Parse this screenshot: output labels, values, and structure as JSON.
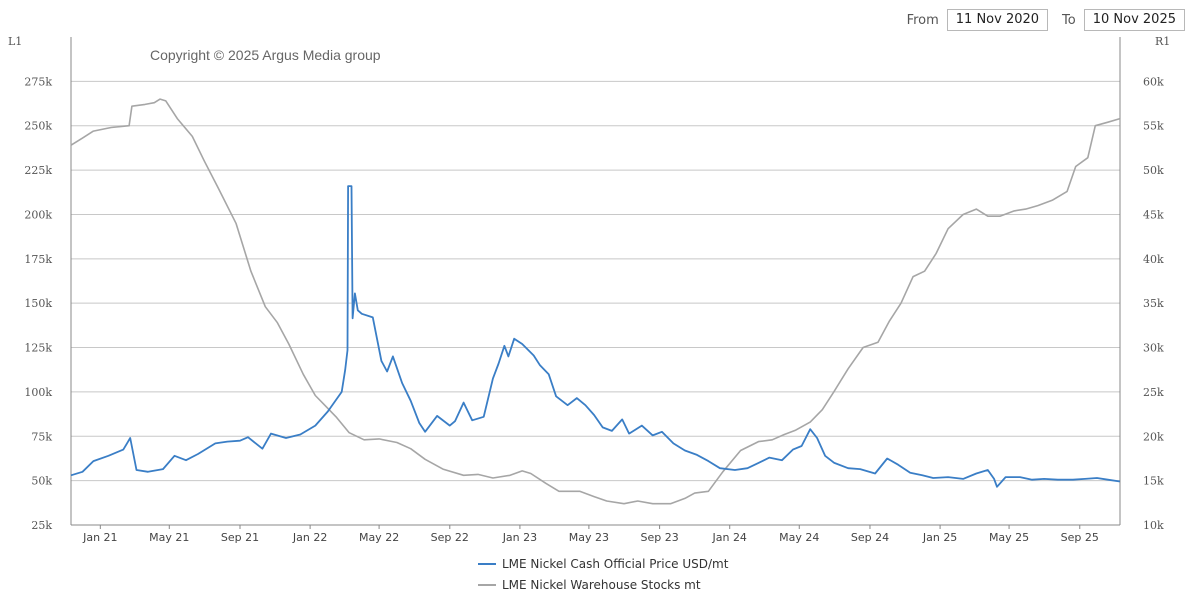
{
  "range": {
    "from_label": "From",
    "from_value": "11 Nov 2020",
    "to_label": "To",
    "to_value": "10 Nov 2025"
  },
  "copyright": "Copyright © 2025 Argus Media group",
  "colors": {
    "price": "#3a7ec6",
    "stocks": "#a6a6a6",
    "grid": "#c8c8c8",
    "axis": "#888888"
  },
  "chart_data": {
    "type": "line",
    "title": "",
    "grid": true,
    "legend_placement": "bottom-center",
    "left_axis": {
      "label": "L1",
      "ylim": [
        25000,
        300000
      ],
      "ticks": [
        25000,
        50000,
        75000,
        100000,
        125000,
        150000,
        175000,
        200000,
        225000,
        250000,
        275000
      ],
      "tick_labels": [
        "25k",
        "50k",
        "75k",
        "100k",
        "125k",
        "150k",
        "175k",
        "200k",
        "225k",
        "250k",
        "275k"
      ]
    },
    "right_axis": {
      "label": "R1",
      "ylim": [
        10000,
        65000
      ],
      "ticks": [
        10000,
        15000,
        20000,
        25000,
        30000,
        35000,
        40000,
        45000,
        50000,
        55000,
        60000
      ],
      "tick_labels": [
        "10k",
        "15k",
        "20k",
        "25k",
        "30k",
        "35k",
        "40k",
        "45k",
        "50k",
        "55k",
        "60k"
      ]
    },
    "x_axis": {
      "xlim": [
        "2020-11-11",
        "2025-11-10"
      ],
      "ticks": [
        "2021-01-01",
        "2021-05-01",
        "2021-09-01",
        "2022-01-01",
        "2022-05-01",
        "2022-09-01",
        "2023-01-01",
        "2023-05-01",
        "2023-09-01",
        "2024-01-01",
        "2024-05-01",
        "2024-09-01",
        "2025-01-01",
        "2025-05-01",
        "2025-09-01"
      ],
      "tick_labels": [
        "Jan 21",
        "May 21",
        "Sep 21",
        "Jan 22",
        "May 22",
        "Sep 22",
        "Jan 23",
        "May 23",
        "Sep 23",
        "Jan 24",
        "May 24",
        "Sep 24",
        "Jan 25",
        "May 25",
        "Sep 25"
      ]
    },
    "series": [
      {
        "name": "LME Nickel Cash Official Price USD/mt",
        "axis": "right",
        "points": [
          [
            "2020-11-11",
            15600
          ],
          [
            "2020-12-01",
            16000
          ],
          [
            "2020-12-20",
            17200
          ],
          [
            "2021-01-15",
            17800
          ],
          [
            "2021-02-10",
            18500
          ],
          [
            "2021-02-22",
            19800
          ],
          [
            "2021-03-05",
            16200
          ],
          [
            "2021-03-25",
            16000
          ],
          [
            "2021-04-20",
            16300
          ],
          [
            "2021-05-10",
            17800
          ],
          [
            "2021-05-30",
            17300
          ],
          [
            "2021-06-20",
            18000
          ],
          [
            "2021-07-20",
            19200
          ],
          [
            "2021-08-10",
            19400
          ],
          [
            "2021-09-01",
            19500
          ],
          [
            "2021-09-15",
            19900
          ],
          [
            "2021-10-10",
            18600
          ],
          [
            "2021-10-25",
            20300
          ],
          [
            "2021-11-20",
            19800
          ],
          [
            "2021-12-15",
            20200
          ],
          [
            "2022-01-10",
            21200
          ],
          [
            "2022-02-01",
            22800
          ],
          [
            "2022-02-25",
            25000
          ],
          [
            "2022-03-03",
            27500
          ],
          [
            "2022-03-07",
            29700
          ],
          [
            "2022-03-08",
            48200
          ],
          [
            "2022-03-14",
            48200
          ],
          [
            "2022-03-16",
            33300
          ],
          [
            "2022-03-20",
            36100
          ],
          [
            "2022-03-25",
            34200
          ],
          [
            "2022-04-01",
            33800
          ],
          [
            "2022-04-20",
            33400
          ],
          [
            "2022-05-05",
            28500
          ],
          [
            "2022-05-15",
            27300
          ],
          [
            "2022-05-25",
            29000
          ],
          [
            "2022-06-10",
            26000
          ],
          [
            "2022-06-25",
            24000
          ],
          [
            "2022-07-10",
            21500
          ],
          [
            "2022-07-20",
            20500
          ],
          [
            "2022-08-10",
            22300
          ],
          [
            "2022-09-01",
            21200
          ],
          [
            "2022-09-10",
            21700
          ],
          [
            "2022-09-25",
            23800
          ],
          [
            "2022-10-10",
            21800
          ],
          [
            "2022-10-30",
            22200
          ],
          [
            "2022-11-15",
            26500
          ],
          [
            "2022-11-25",
            28200
          ],
          [
            "2022-12-05",
            30200
          ],
          [
            "2022-12-12",
            29000
          ],
          [
            "2022-12-22",
            31000
          ],
          [
            "2023-01-05",
            30400
          ],
          [
            "2023-01-25",
            29100
          ],
          [
            "2023-02-05",
            28000
          ],
          [
            "2023-02-20",
            27000
          ],
          [
            "2023-03-05",
            24500
          ],
          [
            "2023-03-25",
            23500
          ],
          [
            "2023-04-10",
            24300
          ],
          [
            "2023-04-25",
            23500
          ],
          [
            "2023-05-10",
            22400
          ],
          [
            "2023-05-25",
            21000
          ],
          [
            "2023-06-10",
            20600
          ],
          [
            "2023-06-28",
            21900
          ],
          [
            "2023-07-10",
            20300
          ],
          [
            "2023-08-01",
            21200
          ],
          [
            "2023-08-20",
            20100
          ],
          [
            "2023-09-05",
            20500
          ],
          [
            "2023-09-25",
            19200
          ],
          [
            "2023-10-15",
            18400
          ],
          [
            "2023-11-05",
            17900
          ],
          [
            "2023-11-25",
            17200
          ],
          [
            "2023-12-15",
            16400
          ],
          [
            "2024-01-10",
            16200
          ],
          [
            "2024-02-01",
            16400
          ],
          [
            "2024-02-20",
            17000
          ],
          [
            "2024-03-10",
            17600
          ],
          [
            "2024-04-01",
            17300
          ],
          [
            "2024-04-20",
            18500
          ],
          [
            "2024-05-05",
            18900
          ],
          [
            "2024-05-20",
            20800
          ],
          [
            "2024-06-01",
            19800
          ],
          [
            "2024-06-15",
            17800
          ],
          [
            "2024-07-01",
            17000
          ],
          [
            "2024-07-25",
            16400
          ],
          [
            "2024-08-15",
            16300
          ],
          [
            "2024-09-10",
            15800
          ],
          [
            "2024-10-01",
            17500
          ],
          [
            "2024-10-20",
            16800
          ],
          [
            "2024-11-10",
            15900
          ],
          [
            "2024-12-01",
            15600
          ],
          [
            "2024-12-20",
            15300
          ],
          [
            "2025-01-15",
            15400
          ],
          [
            "2025-02-10",
            15200
          ],
          [
            "2025-03-05",
            15800
          ],
          [
            "2025-03-25",
            16200
          ],
          [
            "2025-04-05",
            15200
          ],
          [
            "2025-04-10",
            14300
          ],
          [
            "2025-04-25",
            15400
          ],
          [
            "2025-05-20",
            15400
          ],
          [
            "2025-06-10",
            15100
          ],
          [
            "2025-07-01",
            15200
          ],
          [
            "2025-07-25",
            15100
          ],
          [
            "2025-08-20",
            15100
          ],
          [
            "2025-09-10",
            15200
          ],
          [
            "2025-10-01",
            15300
          ],
          [
            "2025-10-20",
            15100
          ],
          [
            "2025-11-10",
            14900
          ]
        ]
      },
      {
        "name": "LME Nickel Warehouse Stocks mt",
        "axis": "left",
        "points": [
          [
            "2020-11-11",
            239000
          ],
          [
            "2020-12-01",
            243000
          ],
          [
            "2020-12-20",
            247000
          ],
          [
            "2021-01-20",
            249000
          ],
          [
            "2021-02-20",
            250000
          ],
          [
            "2021-02-25",
            261000
          ],
          [
            "2021-03-20",
            262000
          ],
          [
            "2021-04-05",
            263000
          ],
          [
            "2021-04-15",
            265000
          ],
          [
            "2021-04-25",
            264000
          ],
          [
            "2021-05-15",
            254000
          ],
          [
            "2021-06-10",
            244000
          ],
          [
            "2021-07-01",
            230000
          ],
          [
            "2021-07-25",
            215000
          ],
          [
            "2021-08-25",
            195000
          ],
          [
            "2021-09-20",
            168000
          ],
          [
            "2021-10-15",
            148000
          ],
          [
            "2021-11-05",
            139000
          ],
          [
            "2021-11-25",
            127000
          ],
          [
            "2021-12-20",
            110000
          ],
          [
            "2022-01-10",
            98000
          ],
          [
            "2022-01-25",
            93000
          ],
          [
            "2022-02-15",
            86000
          ],
          [
            "2022-03-10",
            77000
          ],
          [
            "2022-04-05",
            73000
          ],
          [
            "2022-05-01",
            73500
          ],
          [
            "2022-06-01",
            71500
          ],
          [
            "2022-06-25",
            68000
          ],
          [
            "2022-07-20",
            62000
          ],
          [
            "2022-08-20",
            56500
          ],
          [
            "2022-09-25",
            53000
          ],
          [
            "2022-10-20",
            53500
          ],
          [
            "2022-11-15",
            51500
          ],
          [
            "2022-12-15",
            53000
          ],
          [
            "2023-01-05",
            55500
          ],
          [
            "2023-01-20",
            54000
          ],
          [
            "2023-02-15",
            48500
          ],
          [
            "2023-03-10",
            44000
          ],
          [
            "2023-04-15",
            44000
          ],
          [
            "2023-05-10",
            41000
          ],
          [
            "2023-06-01",
            38500
          ],
          [
            "2023-07-01",
            37000
          ],
          [
            "2023-07-25",
            38500
          ],
          [
            "2023-08-20",
            37000
          ],
          [
            "2023-09-20",
            37000
          ],
          [
            "2023-10-15",
            40000
          ],
          [
            "2023-11-01",
            43000
          ],
          [
            "2023-11-25",
            44000
          ],
          [
            "2023-12-20",
            55000
          ],
          [
            "2024-01-20",
            67000
          ],
          [
            "2024-02-20",
            72000
          ],
          [
            "2024-03-15",
            73000
          ],
          [
            "2024-04-05",
            76000
          ],
          [
            "2024-04-25",
            78500
          ],
          [
            "2024-05-20",
            83000
          ],
          [
            "2024-06-10",
            90000
          ],
          [
            "2024-06-30",
            100000
          ],
          [
            "2024-07-25",
            113000
          ],
          [
            "2024-08-20",
            125000
          ],
          [
            "2024-09-15",
            128000
          ],
          [
            "2024-10-05",
            140000
          ],
          [
            "2024-10-25",
            150000
          ],
          [
            "2024-11-15",
            165000
          ],
          [
            "2024-12-05",
            168000
          ],
          [
            "2024-12-25",
            178000
          ],
          [
            "2025-01-15",
            192000
          ],
          [
            "2025-02-10",
            200000
          ],
          [
            "2025-03-05",
            203000
          ],
          [
            "2025-03-25",
            199000
          ],
          [
            "2025-04-15",
            199000
          ],
          [
            "2025-05-10",
            202000
          ],
          [
            "2025-05-30",
            203000
          ],
          [
            "2025-06-20",
            205000
          ],
          [
            "2025-07-15",
            208000
          ],
          [
            "2025-08-10",
            213000
          ],
          [
            "2025-08-25",
            227000
          ],
          [
            "2025-09-15",
            232000
          ],
          [
            "2025-09-28",
            250000
          ],
          [
            "2025-10-20",
            252000
          ],
          [
            "2025-11-10",
            254000
          ]
        ]
      }
    ]
  }
}
